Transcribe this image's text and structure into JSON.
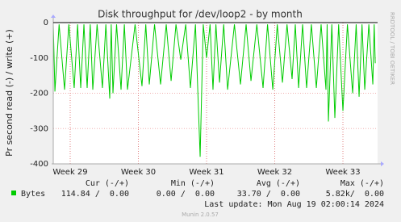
{
  "chart_data": {
    "type": "line",
    "title": "Disk throughput for /dev/loop2 - by month",
    "y_label": "Pr second read (-) / write (+)",
    "side_text": "RRDTOOL / TOBI OETIKER",
    "x": [
      0,
      0.17,
      0.6,
      1.16,
      1.6,
      2.15,
      2.5,
      2.82,
      3.15,
      3.48,
      3.8,
      4.06,
      4.5,
      5.05,
      5.4,
      5.8,
      5.95,
      6.13,
      6.5,
      6.96,
      7.3,
      7.62,
      8.4,
      9.11,
      9.5,
      9.86,
      10.4,
      11.02,
      11.6,
      12.1,
      12.6,
      13.09,
      13.6,
      14.08,
      14.6,
      15.08,
      15.4,
      15.74,
      16.1,
      16.4,
      16.7,
      17.07,
      17.5,
      17.9,
      18.6,
      19.22,
      19.8,
      20.3,
      20.9,
      21.54,
      22,
      22.54,
      23,
      23.53,
      24,
      24.52,
      24.85,
      25.19,
      25.6,
      26.01,
      26.5,
      27.01,
      27.5,
      28.0,
      28.12,
      28.25,
      28.6,
      28.91,
      29.3,
      29.74,
      30.2,
      30.74,
      31.1,
      31.4,
      31.7,
      31.98,
      32.4,
      32.81,
      32.95,
      33.06
    ],
    "series": [
      {
        "name": "Bytes",
        "color": "#00cc00",
        "values": [
          -5,
          -195,
          -5,
          -190,
          -5,
          -185,
          -5,
          -185,
          -5,
          -185,
          -5,
          -190,
          -5,
          -185,
          -5,
          -215,
          -5,
          -200,
          -5,
          -190,
          -5,
          -190,
          -5,
          -180,
          -5,
          -175,
          -5,
          -175,
          -5,
          -165,
          -5,
          -105,
          -5,
          -185,
          -5,
          -380,
          -5,
          -100,
          -5,
          -190,
          -5,
          -170,
          -5,
          -190,
          -5,
          -175,
          -5,
          -165,
          -5,
          -185,
          -5,
          -190,
          -5,
          -170,
          -5,
          -160,
          -5,
          -185,
          -5,
          -185,
          -5,
          -185,
          -5,
          -190,
          -5,
          -280,
          -5,
          -270,
          -5,
          -250,
          -5,
          -200,
          -5,
          -210,
          -5,
          -190,
          -5,
          -175,
          -5,
          -115
        ]
      }
    ],
    "xlim": [
      0,
      33.3
    ],
    "xticks": [
      {
        "value": 1.74,
        "label": "Week 29"
      },
      {
        "value": 8.74,
        "label": "Week 30"
      },
      {
        "value": 15.74,
        "label": "Week 31"
      },
      {
        "value": 22.74,
        "label": "Week 32"
      },
      {
        "value": 29.74,
        "label": "Week 33"
      }
    ],
    "ylim": [
      -400,
      0
    ],
    "yticks": [
      0,
      -100,
      -200,
      -300,
      -400
    ],
    "grid": true,
    "legend": {
      "headers": [
        "Cur (-/+)",
        "Min (-/+)",
        "Avg (-/+)",
        "Max (-/+)"
      ],
      "row": [
        "114.84 /  0.00",
        "0.00 /  0.00",
        "33.70 /  0.00",
        "5.82k/  0.00"
      ]
    },
    "last_update": "Last update: Mon Aug 19 02:00:14 2024",
    "footer": "Munin 2.0.57"
  }
}
